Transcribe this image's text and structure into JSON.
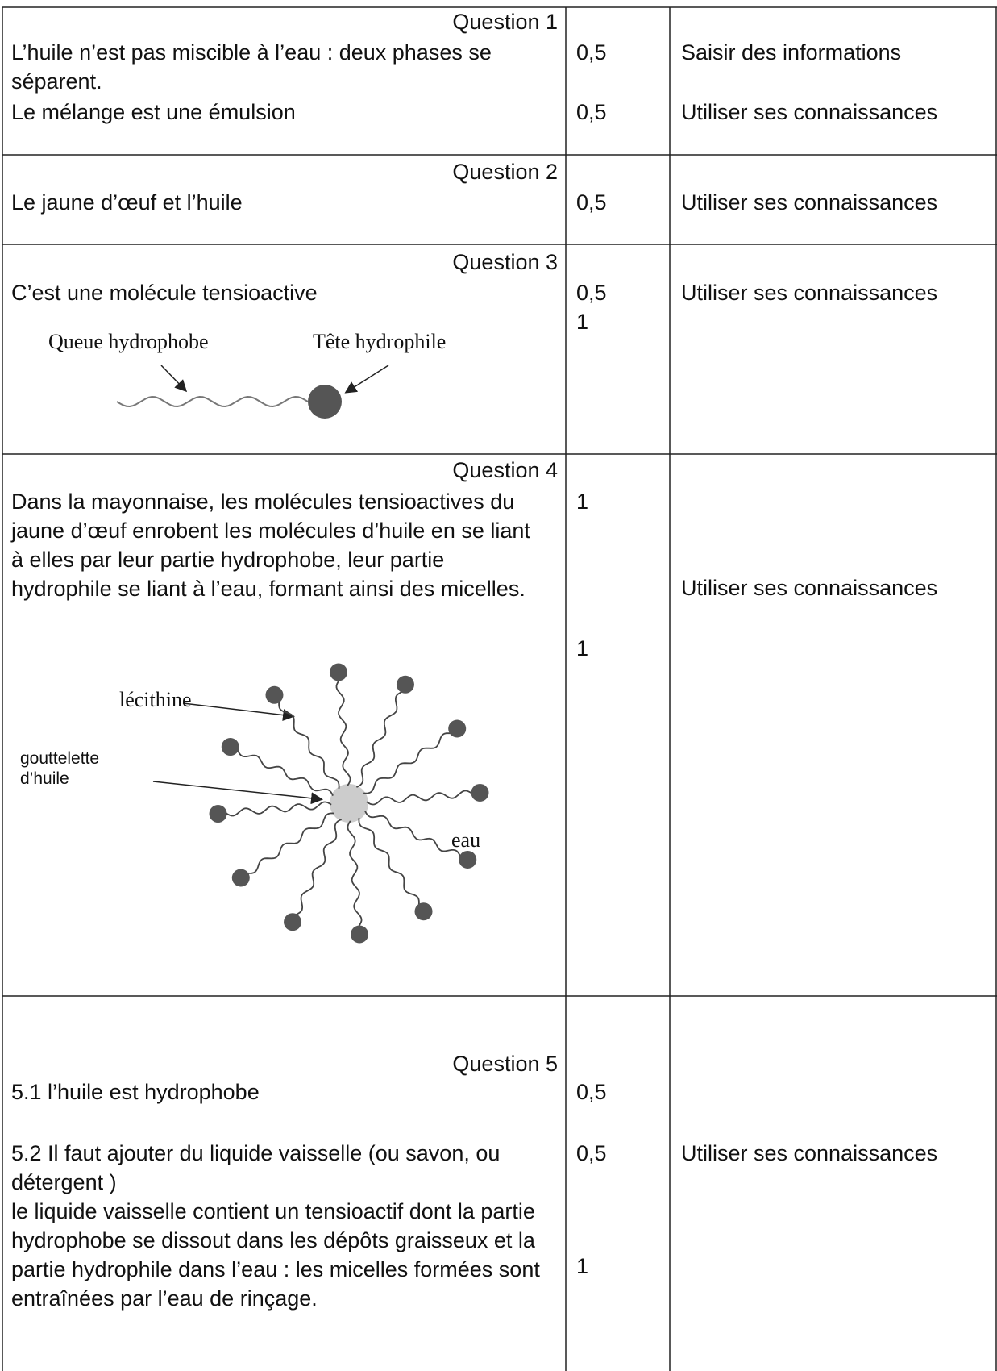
{
  "rows": [
    {
      "question": "Question 1",
      "answers": [
        "L’huile n’est pas miscible à l’eau : deux phases se séparent.",
        "Le mélange est une émulsion"
      ],
      "points": [
        "0,5",
        "0,5"
      ],
      "skills": [
        "Saisir des informations",
        "Utiliser ses connaissances"
      ]
    },
    {
      "question": "Question 2",
      "answers": [
        "Le jaune d’œuf et l’huile"
      ],
      "points": [
        "0,5"
      ],
      "skills": [
        "Utiliser ses connaissances"
      ]
    },
    {
      "question": "Question 3",
      "answers": [
        "C’est une molécule tensioactive"
      ],
      "points": [
        "0,5",
        "1"
      ],
      "skills": [
        "Utiliser ses connaissances"
      ]
    },
    {
      "question": "Question 4",
      "answers": [
        "Dans la mayonnaise, les molécules tensioactives du jaune d’œuf enrobent les molécules d’huile en se liant à elles par leur partie hydrophobe, leur partie hydrophile se liant à l’eau, formant ainsi des micelles."
      ],
      "points": [
        "1",
        "1"
      ],
      "skills": [
        "Utiliser ses connaissances"
      ]
    },
    {
      "question": "Question 5",
      "answers": [
        "5.1 l’huile est hydrophobe",
        "5.2 Il faut ajouter du liquide vaisselle (ou savon, ou détergent )",
        "le liquide vaisselle contient un tensioactif dont la partie hydrophobe se dissout dans les dépôts graisseux et la partie hydrophile dans l’eau : les micelles  formées sont entraînées par l’eau de rinçage."
      ],
      "points": [
        "0,5",
        "0,5",
        "1"
      ],
      "skills": [
        "Utiliser ses connaissances"
      ]
    }
  ],
  "figures": {
    "molecule": {
      "tail": "Queue hydrophobe",
      "head": "Tête hydrophile"
    },
    "micelle": {
      "lecithin": "lécithine",
      "droplet": "gouttelette d’huile",
      "water": "eau"
    }
  }
}
